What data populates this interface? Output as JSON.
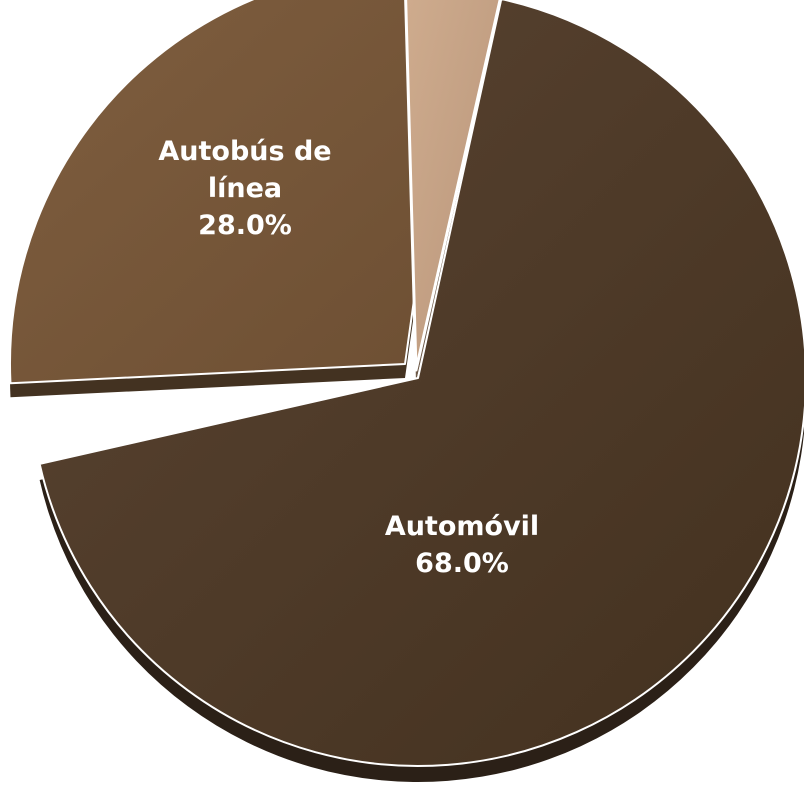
{
  "chart_data": {
    "type": "pie",
    "three_d": true,
    "start_angle_deg": 0,
    "exploded": true,
    "slices": [
      {
        "category_lines": [
          "Automóvil"
        ],
        "label_lines": [
          "Automóvil",
          "68.0%"
        ],
        "value": 68.0,
        "color": "#4e3a2a"
      },
      {
        "category_lines": [
          "Autobús de",
          "línea"
        ],
        "label_lines": [
          "Autobús de",
          "línea",
          "28.0%"
        ],
        "value": 28.0,
        "color": "#7a5a3c"
      },
      {
        "category_lines": [],
        "label_lines": [],
        "value": 4.0,
        "color": "#c6a283"
      }
    ]
  }
}
